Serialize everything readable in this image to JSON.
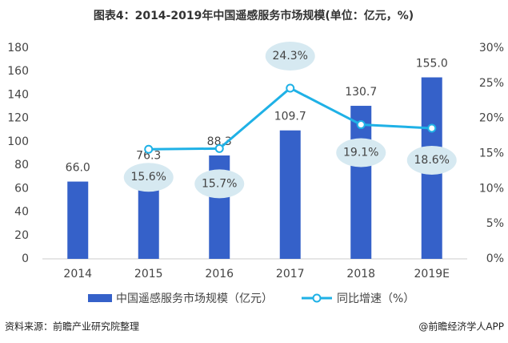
{
  "chart_data": {
    "type": "bar_line",
    "title": "图表4：2014-2019年中国遥感服务市场规模(单位：亿元，%)",
    "categories": [
      "2014",
      "2015",
      "2016",
      "2017",
      "2018",
      "2019E"
    ],
    "series": [
      {
        "name": "中国遥感服务市场规模（亿元）",
        "type": "bar",
        "color": "#3561c9",
        "values": [
          66.0,
          76.3,
          88.3,
          109.7,
          130.7,
          155.0
        ],
        "value_labels": [
          "66.0",
          "76.3",
          "88.3",
          "109.7",
          "130.7",
          "155.0"
        ]
      },
      {
        "name": "同比增速（%）",
        "type": "line",
        "axis": "y2",
        "color": "#1fb1e6",
        "values": [
          null,
          15.6,
          15.7,
          24.3,
          19.1,
          18.6
        ],
        "value_labels": [
          null,
          "15.6%",
          "15.7%",
          "24.3%",
          "19.1%",
          "18.6%"
        ]
      }
    ],
    "ylim": [
      0,
      180
    ],
    "yticks": [
      0,
      20,
      40,
      60,
      80,
      100,
      120,
      140,
      160,
      180
    ],
    "y2lim": [
      0,
      30
    ],
    "y2ticks": [
      {
        "value": 0,
        "label": "0%"
      },
      {
        "value": 5,
        "label": "5%"
      },
      {
        "value": 10,
        "label": "10%"
      },
      {
        "value": 15,
        "label": "15%"
      },
      {
        "value": 20,
        "label": "20%"
      },
      {
        "value": 25,
        "label": "25%"
      },
      {
        "value": 30,
        "label": "30%"
      }
    ],
    "source": "资料来源：前瞻产业研究院整理",
    "credit": "@前瞻经济学人APP"
  }
}
